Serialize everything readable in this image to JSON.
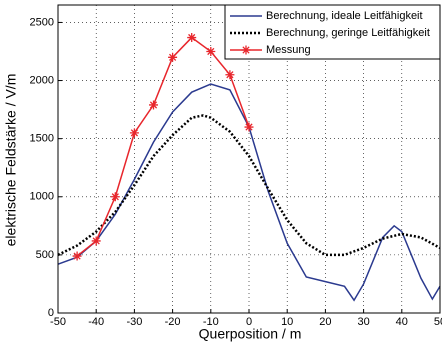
{
  "chart_data": {
    "type": "line",
    "xlabel": "Querposition / m",
    "ylabel": "elektrische Feldstärke / V/m",
    "xlim": [
      -50,
      50
    ],
    "ylim": [
      0,
      2650
    ],
    "xticks": [
      -50,
      -40,
      -30,
      -20,
      -10,
      0,
      10,
      20,
      30,
      40,
      50
    ],
    "yticks": [
      0,
      500,
      1000,
      1500,
      2000,
      2500
    ],
    "grid": true,
    "legend": "top-right",
    "series": [
      {
        "name": "Berechnung, ideale Leitfähigkeit",
        "color": "#2b3a8f",
        "style": "solid",
        "x": [
          -50,
          -45,
          -40,
          -35,
          -30,
          -25,
          -20,
          -15,
          -10,
          -5,
          0,
          5,
          10,
          15,
          20,
          25,
          27.5,
          30,
          35,
          38,
          40,
          45,
          48,
          50
        ],
        "values": [
          420,
          480,
          620,
          850,
          1150,
          1470,
          1730,
          1900,
          1970,
          1920,
          1600,
          1050,
          600,
          310,
          270,
          230,
          110,
          250,
          650,
          750,
          700,
          300,
          120,
          230
        ]
      },
      {
        "name": "Berechnung, geringe Leitfähigkeit",
        "color": "#000000",
        "style": "dotted",
        "x": [
          -50,
          -45,
          -40,
          -35,
          -30,
          -25,
          -20,
          -15,
          -12,
          -10,
          -5,
          0,
          5,
          10,
          15,
          20,
          25,
          30,
          35,
          40,
          45,
          50
        ],
        "values": [
          500,
          580,
          700,
          870,
          1100,
          1350,
          1530,
          1680,
          1700,
          1680,
          1560,
          1350,
          1070,
          800,
          600,
          500,
          500,
          560,
          640,
          680,
          650,
          560
        ]
      },
      {
        "name": "Messung",
        "color": "#e8262c",
        "style": "solid",
        "marker": "star",
        "x": [
          -45,
          -40,
          -35,
          -30,
          -25,
          -20,
          -15,
          -10,
          -5,
          0
        ],
        "values": [
          490,
          620,
          1000,
          1550,
          1790,
          2200,
          2370,
          2250,
          2050,
          1600
        ]
      }
    ]
  }
}
